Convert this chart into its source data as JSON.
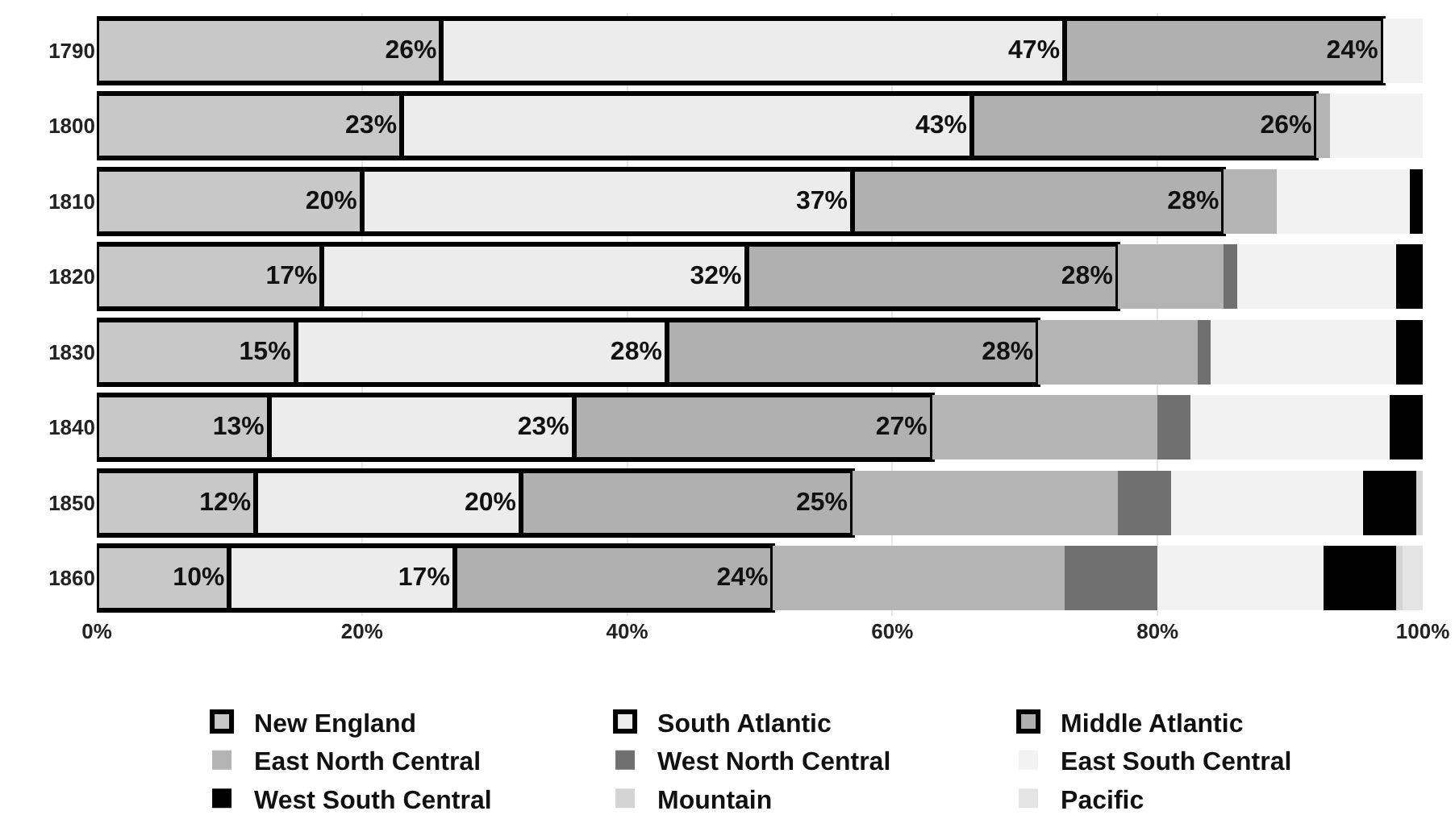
{
  "chart_data": {
    "type": "bar",
    "orientation": "horizontal",
    "stacked": true,
    "categories": [
      "1790",
      "1800",
      "1810",
      "1820",
      "1830",
      "1840",
      "1850",
      "1860"
    ],
    "series": [
      {
        "name": "New England",
        "color": "#c8c8c8",
        "values": [
          26,
          23,
          20,
          17,
          15,
          13,
          12,
          10
        ],
        "value_labels": [
          "26%",
          "23%",
          "20%",
          "17%",
          "15%",
          "13%",
          "12%",
          "10%"
        ]
      },
      {
        "name": "South Atlantic",
        "color": "#ececec",
        "values": [
          47,
          43,
          37,
          32,
          28,
          23,
          20,
          17
        ],
        "value_labels": [
          "47%",
          "43%",
          "37%",
          "32%",
          "28%",
          "23%",
          "20%",
          "17%"
        ]
      },
      {
        "name": "Middle Atlantic",
        "color": "#b0b0b0",
        "values": [
          24,
          26,
          28,
          28,
          28,
          27,
          25,
          24
        ],
        "value_labels": [
          "24%",
          "26%",
          "28%",
          "28%",
          "28%",
          "27%",
          "25%",
          "24%"
        ]
      },
      {
        "name": "East North Central",
        "color": "#b4b4b4",
        "values": [
          0,
          1,
          4,
          8,
          12,
          17,
          20,
          22
        ]
      },
      {
        "name": "West North Central",
        "color": "#707070",
        "values": [
          0,
          0,
          0,
          1,
          1,
          2.5,
          4,
          7
        ]
      },
      {
        "name": "East South Central",
        "color": "#f2f2f2",
        "values": [
          3,
          7,
          10,
          12,
          14,
          15,
          14.5,
          12.5
        ]
      },
      {
        "name": "West South Central",
        "color": "#000000",
        "values": [
          0,
          0,
          1,
          2,
          2,
          2.5,
          4,
          5.5
        ]
      },
      {
        "name": "Mountain",
        "color": "#d4d4d4",
        "values": [
          0,
          0,
          0,
          0,
          0,
          0,
          0.5,
          0.5
        ]
      },
      {
        "name": "Pacific",
        "color": "#e4e4e4",
        "values": [
          0,
          0,
          0,
          0,
          0,
          0,
          0,
          1.5
        ]
      }
    ],
    "xlim": [
      0,
      100
    ],
    "xticks": [
      {
        "value": 0,
        "label": "0%"
      },
      {
        "value": 20,
        "label": "20%"
      },
      {
        "value": 40,
        "label": "40%"
      },
      {
        "value": 60,
        "label": "60%"
      },
      {
        "value": 80,
        "label": "80%"
      },
      {
        "value": 100,
        "label": "100%"
      }
    ],
    "grid": "x",
    "legend": "bottom"
  }
}
